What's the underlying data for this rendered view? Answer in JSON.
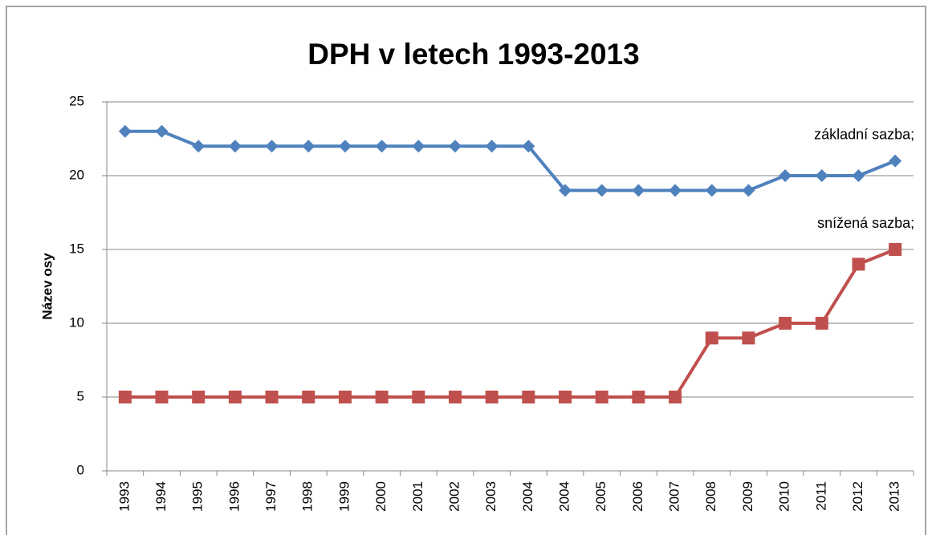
{
  "chart_data": {
    "type": "line",
    "title": "DPH v letech 1993-2013",
    "y_label": "Název osy",
    "categories": [
      "1993",
      "1994",
      "1995",
      "1996",
      "1997",
      "1998",
      "1999",
      "2000",
      "2001",
      "2002",
      "2003",
      "2004",
      "2004",
      "2005",
      "2006",
      "2007",
      "2008",
      "2009",
      "2010",
      "2011",
      "2012",
      "2013"
    ],
    "series": [
      {
        "name": "základní sazba;",
        "color": "#4f81bd",
        "marker": "diamond",
        "values": [
          23,
          23,
          22,
          22,
          22,
          22,
          22,
          22,
          22,
          22,
          22,
          22,
          19,
          19,
          19,
          19,
          19,
          19,
          20,
          20,
          20,
          21
        ]
      },
      {
        "name": "snížená sazba;",
        "color": "#c0504d",
        "marker": "square",
        "values": [
          5,
          5,
          5,
          5,
          5,
          5,
          5,
          5,
          5,
          5,
          5,
          5,
          5,
          5,
          5,
          5,
          9,
          9,
          10,
          10,
          14,
          15
        ]
      }
    ],
    "ylim": [
      0,
      25
    ],
    "yticks": [
      0,
      5,
      10,
      15,
      20,
      25
    ],
    "grid": true
  }
}
